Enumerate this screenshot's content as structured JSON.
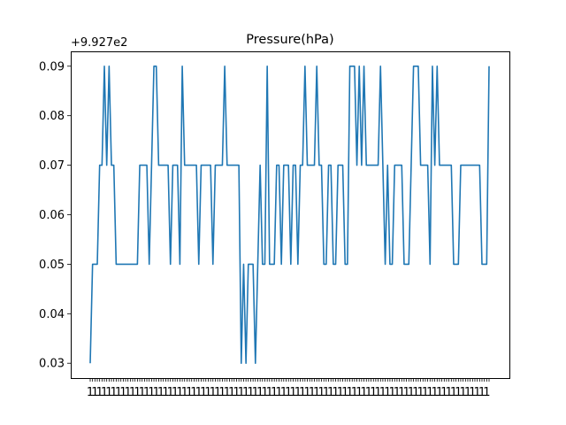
{
  "chart_data": {
    "type": "line",
    "title": "Pressure(hPa)",
    "offset_label": "+9.927e2",
    "xlabel": "",
    "ylabel": "",
    "ylim": [
      0.027,
      0.093
    ],
    "yticks": [
      0.03,
      0.04,
      0.05,
      0.06,
      0.07,
      0.08,
      0.09
    ],
    "ytick_labels": [
      "0.03",
      "0.04",
      "0.05",
      "0.06",
      "0.07",
      "0.08",
      "0.09"
    ],
    "x_tick_labels_note": "overlapping dense timestamp labels",
    "grid": false,
    "legend": "none",
    "line_color": "#1f77b4",
    "series": [
      {
        "values": [
          0.03,
          0.05,
          0.05,
          0.05,
          0.07,
          0.07,
          0.09,
          0.07,
          0.09,
          0.07,
          0.07,
          0.05,
          0.05,
          0.05,
          0.05,
          0.05,
          0.05,
          0.05,
          0.05,
          0.05,
          0.05,
          0.07,
          0.07,
          0.07,
          0.07,
          0.05,
          0.07,
          0.09,
          0.09,
          0.07,
          0.07,
          0.07,
          0.07,
          0.07,
          0.05,
          0.07,
          0.07,
          0.07,
          0.05,
          0.09,
          0.07,
          0.07,
          0.07,
          0.07,
          0.07,
          0.07,
          0.05,
          0.07,
          0.07,
          0.07,
          0.07,
          0.07,
          0.05,
          0.07,
          0.07,
          0.07,
          0.07,
          0.09,
          0.07,
          0.07,
          0.07,
          0.07,
          0.07,
          0.07,
          0.03,
          0.05,
          0.03,
          0.05,
          0.05,
          0.05,
          0.03,
          0.05,
          0.07,
          0.05,
          0.05,
          0.09,
          0.05,
          0.05,
          0.05,
          0.07,
          0.07,
          0.05,
          0.07,
          0.07,
          0.07,
          0.05,
          0.07,
          0.07,
          0.05,
          0.07,
          0.07,
          0.09,
          0.07,
          0.07,
          0.07,
          0.07,
          0.09,
          0.07,
          0.07,
          0.05,
          0.05,
          0.07,
          0.07,
          0.05,
          0.05,
          0.07,
          0.07,
          0.07,
          0.05,
          0.05,
          0.09,
          0.09,
          0.09,
          0.07,
          0.09,
          0.07,
          0.09,
          0.07,
          0.07,
          0.07,
          0.07,
          0.07,
          0.07,
          0.09,
          0.07,
          0.05,
          0.07,
          0.05,
          0.05,
          0.07,
          0.07,
          0.07,
          0.07,
          0.05,
          0.05,
          0.05,
          0.07,
          0.09,
          0.09,
          0.09,
          0.07,
          0.07,
          0.07,
          0.07,
          0.05,
          0.09,
          0.07,
          0.09,
          0.07,
          0.07,
          0.07,
          0.07,
          0.07,
          0.07,
          0.05,
          0.05,
          0.05,
          0.07,
          0.07,
          0.07,
          0.07,
          0.07,
          0.07,
          0.07,
          0.07,
          0.07,
          0.05,
          0.05,
          0.05,
          0.09
        ]
      }
    ]
  }
}
